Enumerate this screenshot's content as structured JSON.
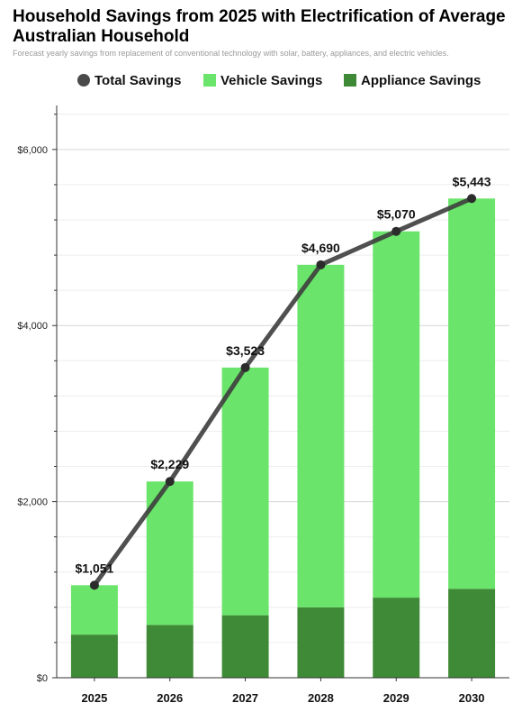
{
  "chart_data": {
    "type": "bar",
    "title": "Household Savings from 2025 with Electrification of Average Australian Household",
    "subtitle": "Forecast yearly savings from replacement of conventional technology with solar, battery, appliances, and electric vehicles.",
    "categories": [
      "2025",
      "2026",
      "2027",
      "2028",
      "2029",
      "2030"
    ],
    "stacked": true,
    "series": [
      {
        "name": "Appliance Savings",
        "values": [
          490,
          600,
          710,
          800,
          910,
          1010
        ],
        "color": "#3f8a37"
      },
      {
        "name": "Vehicle Savings",
        "values": [
          561,
          1629,
          2813,
          3890,
          4160,
          4433
        ],
        "color": "#6ae46a"
      }
    ],
    "line": {
      "name": "Total Savings",
      "values": [
        1051,
        2229,
        3523,
        4690,
        5070,
        5443
      ],
      "color": "#3d3d3d"
    },
    "data_labels": [
      "$1,051",
      "$2,229",
      "$3,523",
      "$4,690",
      "$5,070",
      "$5,443"
    ],
    "legend": {
      "position": "top",
      "items": [
        "Total Savings",
        "Vehicle Savings",
        "Appliance Savings"
      ]
    },
    "ylim": [
      0,
      6500
    ],
    "yticks": [
      0,
      2000,
      4000,
      6000
    ],
    "ytick_labels": [
      "$0",
      "$2,000",
      "$4,000",
      "$6,000"
    ],
    "grid": true
  }
}
